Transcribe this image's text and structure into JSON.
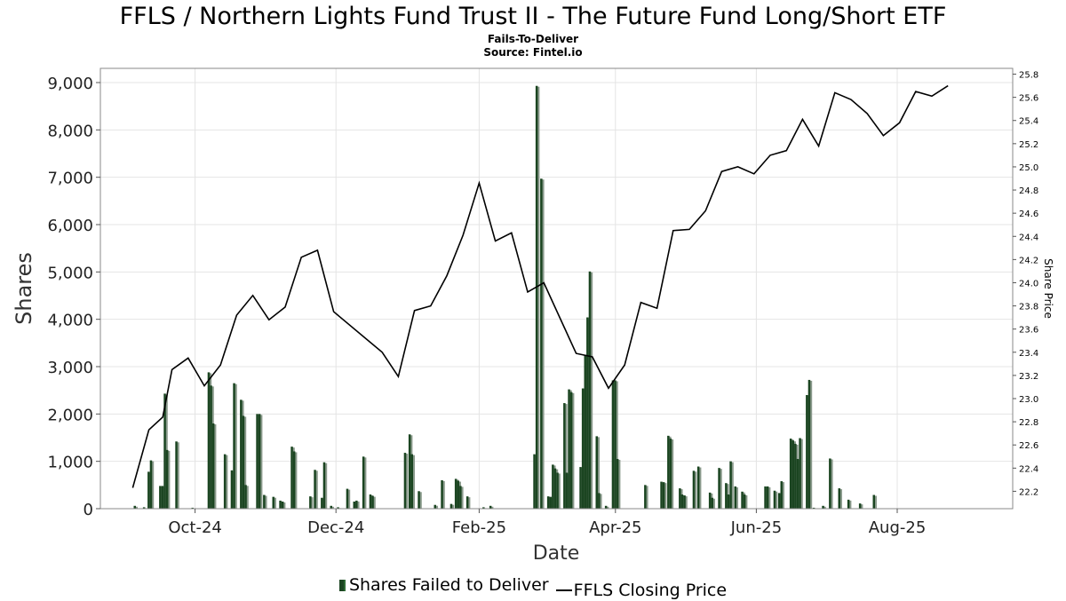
{
  "title": "FFLS / Northern Lights Fund Trust II - The Future Fund Long/Short ETF",
  "subtitle1": "Fails-To-Deliver",
  "subtitle2": "Source: Fintel.io",
  "chart_data": {
    "type": "bar",
    "xlabel": "Date",
    "ylabel": "Shares",
    "y2label": "Share Price",
    "ylim": [
      0,
      9300
    ],
    "y2lim": [
      22.05,
      25.85
    ],
    "yticks": [
      "0",
      "1,000",
      "2,000",
      "3,000",
      "4,000",
      "5,000",
      "6,000",
      "7,000",
      "8,000",
      "9,000"
    ],
    "y2ticks": [
      "22.2",
      "22.4",
      "22.6",
      "22.8",
      "23.0",
      "23.2",
      "23.4",
      "23.6",
      "23.8",
      "24.0",
      "24.2",
      "24.4",
      "24.6",
      "24.8",
      "25.0",
      "25.2",
      "25.4",
      "25.6",
      "25.8"
    ],
    "xticks": [
      "Oct-24",
      "Dec-24",
      "Feb-25",
      "Apr-25",
      "Jun-25",
      "Aug-25"
    ],
    "grid": true,
    "legend_position": "bottom",
    "colors": {
      "bar": "#1b4521",
      "bar_shadow": "#8a9a8c",
      "line": "#000000"
    },
    "series": [
      {
        "name": "Shares Failed to Deliver",
        "type": "bar",
        "points": [
          [
            "2024-09-05",
            60
          ],
          [
            "2024-09-09",
            30
          ],
          [
            "2024-09-11",
            780
          ],
          [
            "2024-09-12",
            1020
          ],
          [
            "2024-09-16",
            480
          ],
          [
            "2024-09-17",
            480
          ],
          [
            "2024-09-18",
            2430
          ],
          [
            "2024-09-19",
            1240
          ],
          [
            "2024-09-23",
            1420
          ],
          [
            "2024-09-30",
            20
          ],
          [
            "2024-10-07",
            2880
          ],
          [
            "2024-10-08",
            2600
          ],
          [
            "2024-10-09",
            1800
          ],
          [
            "2024-10-14",
            1150
          ],
          [
            "2024-10-17",
            810
          ],
          [
            "2024-10-18",
            2650
          ],
          [
            "2024-10-21",
            2300
          ],
          [
            "2024-10-22",
            1960
          ],
          [
            "2024-10-23",
            500
          ],
          [
            "2024-10-28",
            2000
          ],
          [
            "2024-10-29",
            2000
          ],
          [
            "2024-10-31",
            290
          ],
          [
            "2024-11-04",
            250
          ],
          [
            "2024-11-07",
            170
          ],
          [
            "2024-11-08",
            150
          ],
          [
            "2024-11-12",
            1310
          ],
          [
            "2024-11-13",
            1210
          ],
          [
            "2024-11-20",
            260
          ],
          [
            "2024-11-22",
            820
          ],
          [
            "2024-11-25",
            230
          ],
          [
            "2024-11-26",
            980
          ],
          [
            "2024-11-29",
            60
          ],
          [
            "2024-12-02",
            30
          ],
          [
            "2024-12-06",
            420
          ],
          [
            "2024-12-09",
            150
          ],
          [
            "2024-12-10",
            170
          ],
          [
            "2024-12-13",
            1100
          ],
          [
            "2024-12-16",
            300
          ],
          [
            "2024-12-17",
            270
          ],
          [
            "2024-12-31",
            1180
          ],
          [
            "2025-01-02",
            1570
          ],
          [
            "2025-01-03",
            1150
          ],
          [
            "2025-01-06",
            370
          ],
          [
            "2025-01-13",
            80
          ],
          [
            "2025-01-16",
            600
          ],
          [
            "2025-01-20",
            100
          ],
          [
            "2025-01-22",
            630
          ],
          [
            "2025-01-23",
            590
          ],
          [
            "2025-01-24",
            480
          ],
          [
            "2025-01-27",
            260
          ],
          [
            "2025-02-03",
            30
          ],
          [
            "2025-02-06",
            60
          ],
          [
            "2025-02-25",
            1150
          ],
          [
            "2025-02-26",
            8930
          ],
          [
            "2025-02-28",
            6970
          ],
          [
            "2025-03-03",
            260
          ],
          [
            "2025-03-04",
            250
          ],
          [
            "2025-03-05",
            930
          ],
          [
            "2025-03-06",
            850
          ],
          [
            "2025-03-07",
            760
          ],
          [
            "2025-03-10",
            2230
          ],
          [
            "2025-03-11",
            760
          ],
          [
            "2025-03-12",
            2520
          ],
          [
            "2025-03-13",
            2460
          ],
          [
            "2025-03-17",
            880
          ],
          [
            "2025-03-18",
            2540
          ],
          [
            "2025-03-19",
            3250
          ],
          [
            "2025-03-20",
            4040
          ],
          [
            "2025-03-21",
            5010
          ],
          [
            "2025-03-24",
            1530
          ],
          [
            "2025-03-25",
            330
          ],
          [
            "2025-03-28",
            60
          ],
          [
            "2025-03-31",
            2710
          ],
          [
            "2025-04-01",
            2710
          ],
          [
            "2025-04-02",
            1050
          ],
          [
            "2025-04-14",
            500
          ],
          [
            "2025-04-21",
            570
          ],
          [
            "2025-04-22",
            560
          ],
          [
            "2025-04-24",
            1540
          ],
          [
            "2025-04-25",
            1480
          ],
          [
            "2025-04-29",
            430
          ],
          [
            "2025-04-30",
            300
          ],
          [
            "2025-05-01",
            280
          ],
          [
            "2025-05-05",
            800
          ],
          [
            "2025-05-07",
            890
          ],
          [
            "2025-05-12",
            340
          ],
          [
            "2025-05-13",
            230
          ],
          [
            "2025-05-16",
            860
          ],
          [
            "2025-05-19",
            540
          ],
          [
            "2025-05-20",
            300
          ],
          [
            "2025-05-21",
            1000
          ],
          [
            "2025-05-23",
            470
          ],
          [
            "2025-05-26",
            360
          ],
          [
            "2025-05-27",
            300
          ],
          [
            "2025-06-05",
            470
          ],
          [
            "2025-06-06",
            470
          ],
          [
            "2025-06-09",
            380
          ],
          [
            "2025-06-11",
            330
          ],
          [
            "2025-06-12",
            580
          ],
          [
            "2025-06-16",
            1480
          ],
          [
            "2025-06-17",
            1440
          ],
          [
            "2025-06-18",
            1370
          ],
          [
            "2025-06-19",
            1050
          ],
          [
            "2025-06-20",
            1490
          ],
          [
            "2025-06-23",
            2400
          ],
          [
            "2025-06-24",
            2720
          ],
          [
            "2025-06-26",
            20
          ],
          [
            "2025-06-30",
            60
          ],
          [
            "2025-07-03",
            1060
          ],
          [
            "2025-07-07",
            430
          ],
          [
            "2025-07-11",
            190
          ],
          [
            "2025-07-16",
            110
          ],
          [
            "2025-07-22",
            290
          ]
        ]
      },
      {
        "name": "FFLS Closing Price",
        "type": "line",
        "points": [
          [
            "2024-09-04",
            22.23
          ],
          [
            "2024-09-11",
            22.73
          ],
          [
            "2024-09-17",
            22.84
          ],
          [
            "2024-09-21",
            23.25
          ],
          [
            "2024-09-28",
            23.35
          ],
          [
            "2024-10-05",
            23.11
          ],
          [
            "2024-10-12",
            23.29
          ],
          [
            "2024-10-19",
            23.72
          ],
          [
            "2024-10-26",
            23.89
          ],
          [
            "2024-11-02",
            23.68
          ],
          [
            "2024-11-09",
            23.79
          ],
          [
            "2024-11-16",
            24.22
          ],
          [
            "2024-11-23",
            24.28
          ],
          [
            "2024-11-30",
            23.75
          ],
          [
            "2024-12-21",
            23.4
          ],
          [
            "2024-12-28",
            23.19
          ],
          [
            "2025-01-04",
            23.76
          ],
          [
            "2025-01-11",
            23.8
          ],
          [
            "2025-01-18",
            24.06
          ],
          [
            "2025-01-25",
            24.41
          ],
          [
            "2025-02-01",
            24.86
          ],
          [
            "2025-02-08",
            24.36
          ],
          [
            "2025-02-15",
            24.43
          ],
          [
            "2025-02-22",
            23.92
          ],
          [
            "2025-03-01",
            24.0
          ],
          [
            "2025-03-15",
            23.39
          ],
          [
            "2025-03-22",
            23.36
          ],
          [
            "2025-03-29",
            23.09
          ],
          [
            "2025-04-05",
            23.29
          ],
          [
            "2025-04-12",
            23.83
          ],
          [
            "2025-04-19",
            23.78
          ],
          [
            "2025-04-26",
            24.45
          ],
          [
            "2025-05-03",
            24.46
          ],
          [
            "2025-05-10",
            24.62
          ],
          [
            "2025-05-17",
            24.96
          ],
          [
            "2025-05-24",
            25.0
          ],
          [
            "2025-05-31",
            24.94
          ],
          [
            "2025-06-07",
            25.1
          ],
          [
            "2025-06-14",
            25.14
          ],
          [
            "2025-06-21",
            25.41
          ],
          [
            "2025-06-28",
            25.18
          ],
          [
            "2025-07-05",
            25.64
          ],
          [
            "2025-07-12",
            25.58
          ],
          [
            "2025-07-19",
            25.46
          ],
          [
            "2025-07-26",
            25.27
          ],
          [
            "2025-08-02",
            25.38
          ],
          [
            "2025-08-09",
            25.65
          ],
          [
            "2025-08-16",
            25.61
          ],
          [
            "2025-08-23",
            25.7
          ]
        ]
      }
    ]
  },
  "legend": {
    "bar_label": "Shares Failed to Deliver",
    "line_label": "FFLS Closing Price"
  }
}
